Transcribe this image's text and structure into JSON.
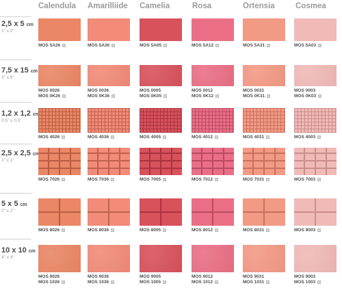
{
  "colors": [
    {
      "name": "Calendula",
      "base": "#ea8766",
      "line": "#b85d42"
    },
    {
      "name": "Amarilliide",
      "base": "#f28b78",
      "line": "#c0614e"
    },
    {
      "name": "Camelia",
      "base": "#d8525c",
      "line": "#a9333f"
    },
    {
      "name": "Rosa",
      "base": "#ea6f86",
      "line": "#b94a61"
    },
    {
      "name": "Ortensia",
      "base": "#f39a85",
      "line": "#c9705c"
    },
    {
      "name": "Cosmea",
      "base": "#f0bab7",
      "line": "#c98d8a"
    }
  ],
  "rows": [
    {
      "size": "2,5 x 5",
      "unit": "cm",
      "imperial": "1\" x 2\"",
      "pattern": "brick",
      "codes": [
        [
          "MOS 5A26"
        ],
        [
          "MOS 5A36"
        ],
        [
          "MOS 5A05"
        ],
        [
          "MOS 5A12"
        ],
        [
          "MOS 5A31"
        ],
        [
          "MOS 5A03"
        ]
      ]
    },
    {
      "size": "7,5 x 15",
      "unit": "cm",
      "imperial": "3\" x 6\"",
      "pattern": "plain",
      "codes": [
        [
          "MOS 0026",
          "MOS 0K26"
        ],
        [
          "MOS 0036",
          "MOS 0K36"
        ],
        [
          "MOS 0005",
          "MOS 0K05"
        ],
        [
          "MOS 0012",
          "MOS 0K12"
        ],
        [
          "MOS 0031",
          "MOS 0K31"
        ],
        [
          "MOS 0003",
          "MOS 0K03"
        ]
      ]
    },
    {
      "size": "1,2 x 1,2",
      "unit": "cm",
      "imperial": "0,5\" x 0,5\"",
      "pattern": "fine",
      "codes": [
        [
          "MOS 4026"
        ],
        [
          "MOS 4036"
        ],
        [
          "MOS 4005"
        ],
        [
          "MOS 4012"
        ],
        [
          "MOS 4031"
        ],
        [
          "MOS 4003"
        ]
      ]
    },
    {
      "size": "2,5 x 2,5",
      "unit": "cm",
      "imperial": "1\" x 1\"",
      "pattern": "grid4",
      "codes": [
        [
          "MOS 7026"
        ],
        [
          "MOS 7036"
        ],
        [
          "MOS 7005"
        ],
        [
          "MOS 7012"
        ],
        [
          "MOS 7031"
        ],
        [
          "MOS 7003"
        ]
      ]
    },
    {
      "size": "5 x 5",
      "unit": "cm",
      "imperial": "2\" x 2\"",
      "pattern": "grid2",
      "codes": [
        [
          "MOS 8026"
        ],
        [
          "MOS 8036"
        ],
        [
          "MOS 8005"
        ],
        [
          "MOS 8012"
        ],
        [
          "MOS 8031"
        ],
        [
          "MOS 8003"
        ]
      ]
    },
    {
      "size": "10 x 10",
      "unit": "cm",
      "imperial": "4\" x 4\"",
      "pattern": "plain",
      "codes": [
        [
          "MOS 9026",
          "MOS 1026"
        ],
        [
          "MOS 9036",
          "MOS 1036"
        ],
        [
          "MOS 9005",
          "MOS 1005"
        ],
        [
          "MOS 9012",
          "MOS 1012"
        ],
        [
          "MOS 9031",
          "MOS 1031"
        ],
        [
          "MOS 9003",
          "MOS 1003"
        ]
      ]
    }
  ]
}
